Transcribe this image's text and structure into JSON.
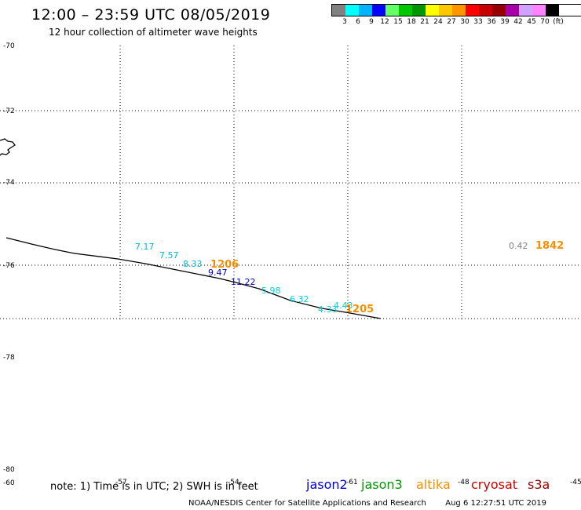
{
  "header": {
    "title": "12:00 – 23:59 UTC 08/05/2019",
    "subtitle": "12 hour collection of altimeter wave heights"
  },
  "colorbar": {
    "colors": [
      "#808080",
      "#00ffff",
      "#00b4ff",
      "#0000ff",
      "#64ff64",
      "#00c800",
      "#009600",
      "#ffff00",
      "#ffc800",
      "#ff9600",
      "#ff0000",
      "#c80000",
      "#960000",
      "#aa00aa",
      "#d2a0ff",
      "#ff82ff",
      "#000000"
    ],
    "labels": [
      "3",
      "6",
      "9",
      "12",
      "15",
      "18",
      "21",
      "24",
      "27",
      "30",
      "33",
      "36",
      "39",
      "42",
      "45",
      "70",
      "(ft)"
    ]
  },
  "axes": {
    "lat_labels": [
      "-70",
      "-72",
      "-74",
      "-76",
      "-78",
      "-78",
      "-80",
      "-60"
    ],
    "lon_labels": [
      "-57",
      "-54",
      "-61",
      "-48",
      "-45"
    ]
  },
  "observations": [
    {
      "value": "7.17",
      "color": "#00b4e0"
    },
    {
      "value": "7.57",
      "color": "#00b4e0"
    },
    {
      "value": "8.33",
      "color": "#00b4e0"
    },
    {
      "value": "9.47",
      "color": "#0000cc"
    },
    {
      "value": "11.22",
      "color": "#0000cc"
    },
    {
      "value": "5.98",
      "color": "#00d0e0"
    },
    {
      "value": "6.32",
      "color": "#00d0e0"
    },
    {
      "value": "4.43",
      "color": "#00d0e0"
    },
    {
      "value": "4.33",
      "color": "#00d0e0"
    },
    {
      "value": "0.42",
      "color": "#808080"
    }
  ],
  "times": [
    {
      "value": "1206",
      "color": "#f39000"
    },
    {
      "value": "1205",
      "color": "#f39000"
    },
    {
      "value": "1842",
      "color": "#f39000"
    }
  ],
  "footer": {
    "note": "note: 1) Time is in UTC; 2) SWH is in feet",
    "satellites": [
      {
        "name": "jason2",
        "color": "#0000dd"
      },
      {
        "name": "jason3",
        "color": "#009900"
      },
      {
        "name": "altika",
        "color": "#f39000"
      },
      {
        "name": "cryosat",
        "color": "#cc0000"
      },
      {
        "name": "s3a",
        "color": "#990000"
      }
    ],
    "credit": "NOAA/NESDIS Center for Satellite Applications and Research",
    "timestamp": "Aug  6 12:27:51 UTC 2019"
  }
}
